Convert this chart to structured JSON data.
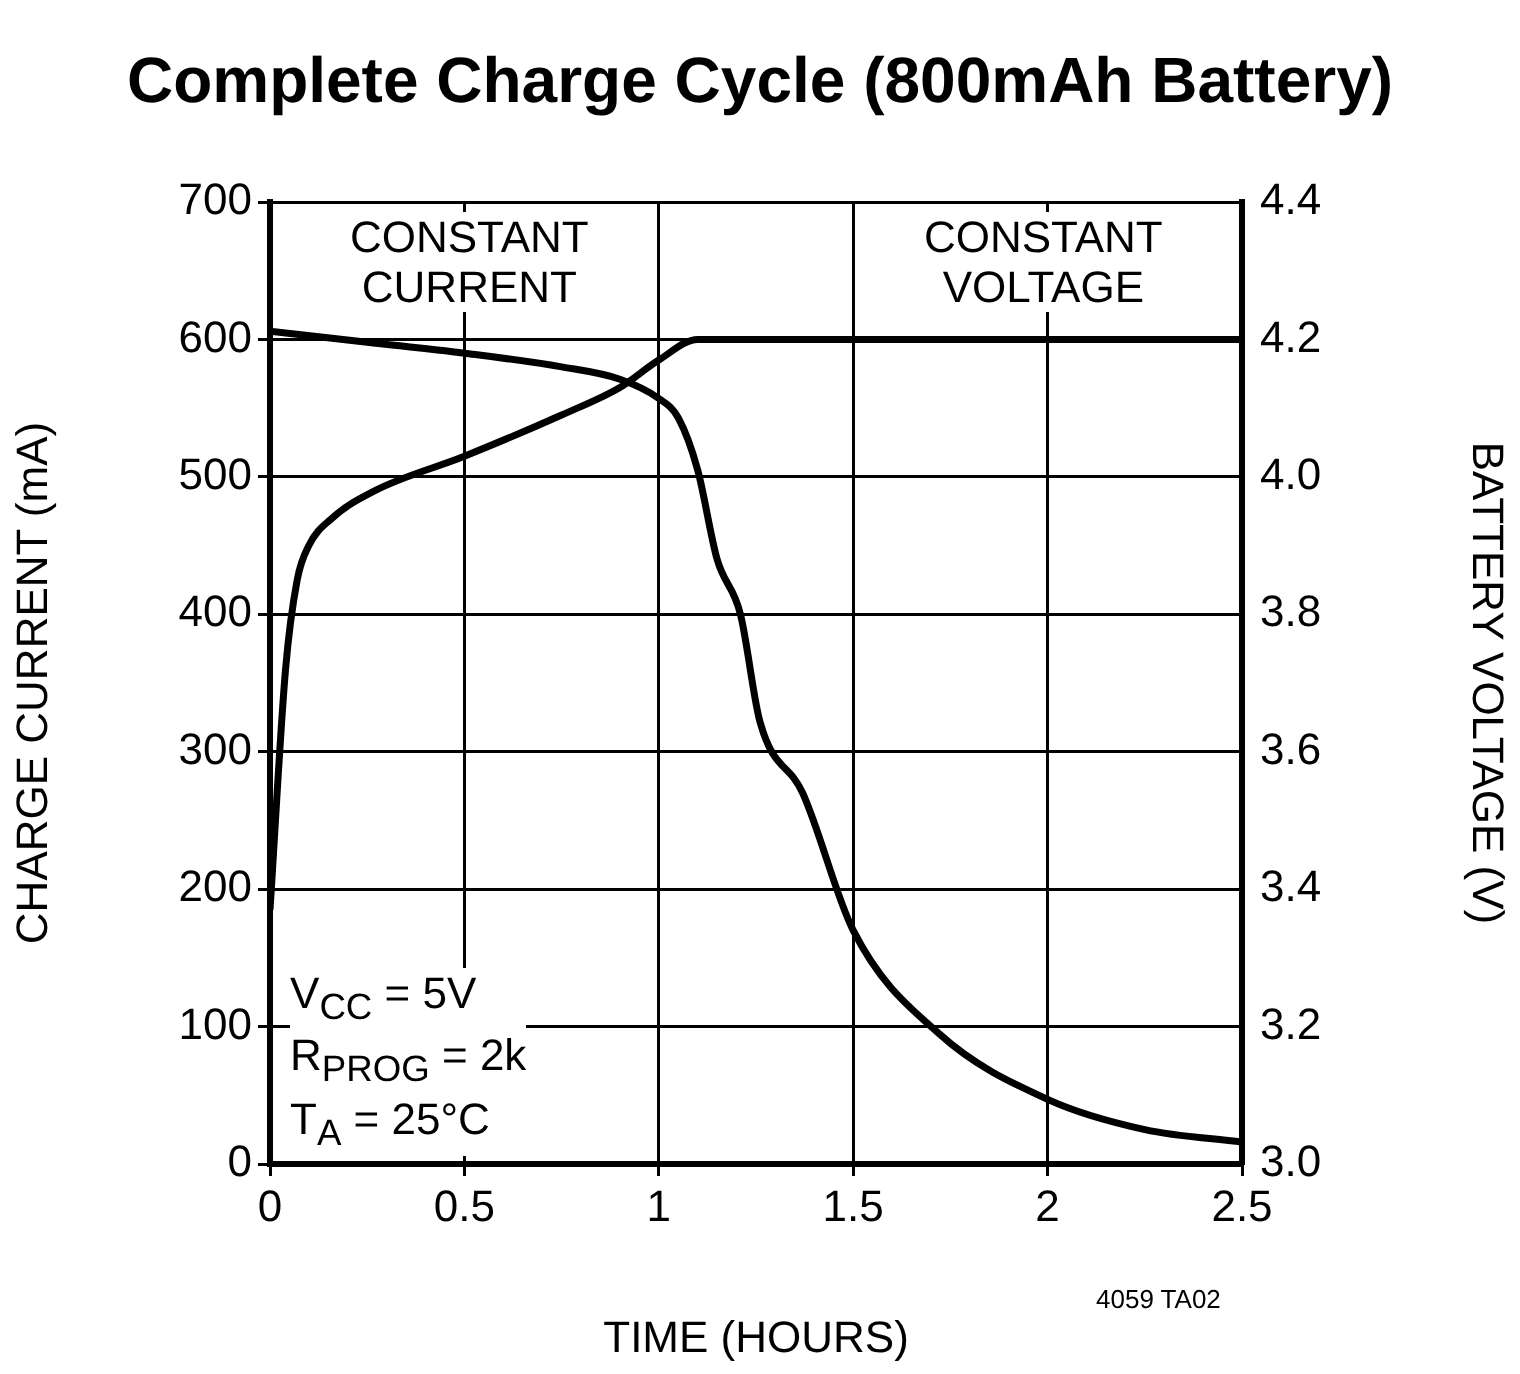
{
  "chart_data": {
    "type": "line",
    "title": "Complete Charge Cycle (800mAh Battery)",
    "xlabel": "TIME (HOURS)",
    "ylabel": "CHARGE CURRENT (mA)",
    "y2label": "BATTERY VOLTAGE (V)",
    "xlim": [
      0,
      2.5
    ],
    "xticks": [
      0,
      0.5,
      1,
      1.5,
      2,
      2.5
    ],
    "ylim": [
      0,
      700
    ],
    "yticks": [
      0,
      100,
      200,
      300,
      400,
      500,
      600,
      700
    ],
    "y2lim": [
      3.0,
      4.4
    ],
    "y2ticks": [
      {
        "value": 3,
        "label": "3.0"
      },
      3.2,
      3.4,
      3.6,
      3.8,
      {
        "value": 4,
        "label": "4.0"
      },
      4.2,
      4.4
    ],
    "grid": true,
    "legend": false,
    "marker": "none",
    "line_style": "solid",
    "series": [
      {
        "color": "#000000",
        "x": [
          0,
          0.25,
          0.5,
          0.75,
          0.9,
          1.0,
          1.05,
          1.1,
          1.15,
          1.21,
          1.26,
          1.37,
          1.5,
          1.72,
          2.0,
          2.25,
          2.5
        ],
        "values": [
          606,
          598,
          590,
          580,
          571,
          557,
          543,
          505,
          440,
          400,
          322,
          270,
          170,
          95,
          47,
          25,
          16
        ]
      },
      {
        "color": "#000000",
        "axis": "y2",
        "x": [
          0,
          0.04,
          0.07,
          0.1,
          0.16,
          0.27,
          0.5,
          0.75,
          0.9,
          1.0,
          1.1,
          1.2,
          2.5
        ],
        "values": [
          3.37,
          3.72,
          3.85,
          3.9,
          3.94,
          3.98,
          4.03,
          4.09,
          4.13,
          4.17,
          4.2,
          4.2,
          4.2
        ]
      }
    ],
    "annotations": [
      "CONSTANT\nCURRENT",
      "CONSTANT\nVOLTAGE",
      "V$_{CC}$ = 5V\nR$_{PROG}$ = 2k\nT$_{A}$ = 25°C",
      "4059 TA02"
    ]
  }
}
